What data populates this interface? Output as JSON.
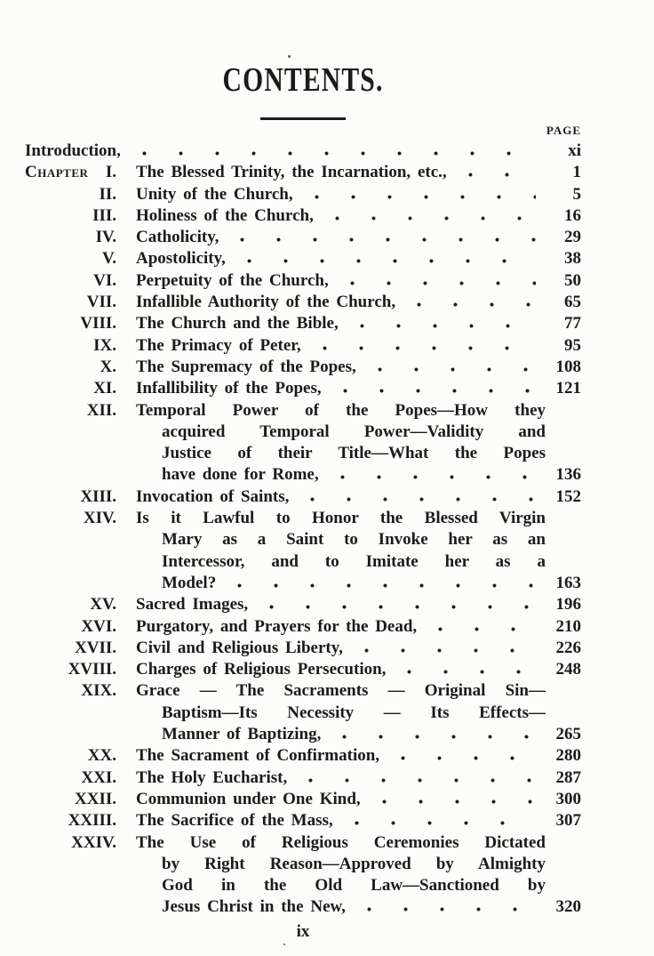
{
  "page": {
    "title": "CONTENTS.",
    "page_column_label": "PAGE",
    "folio": "ix"
  },
  "toc": {
    "entries": [
      {
        "intro": true,
        "prefix": "",
        "numeral": "",
        "lines": [
          "Introduction,"
        ],
        "page": "xi"
      },
      {
        "prefix": "Chapter",
        "numeral": "I.",
        "lines": [
          "The Blessed Trinity, the Incarnation, etc.,"
        ],
        "page": "1"
      },
      {
        "prefix": "",
        "numeral": "II.",
        "lines": [
          "Unity of the Church,"
        ],
        "page": "5"
      },
      {
        "prefix": "",
        "numeral": "III.",
        "lines": [
          "Holiness of the Church,"
        ],
        "page": "16"
      },
      {
        "prefix": "",
        "numeral": "IV.",
        "lines": [
          "Catholicity,"
        ],
        "page": "29"
      },
      {
        "prefix": "",
        "numeral": "V.",
        "lines": [
          "Apostolicity,"
        ],
        "page": "38"
      },
      {
        "prefix": "",
        "numeral": "VI.",
        "lines": [
          "Perpetuity of the Church,"
        ],
        "page": "50"
      },
      {
        "prefix": "",
        "numeral": "VII.",
        "lines": [
          "Infallible Authority of the Church,"
        ],
        "page": "65"
      },
      {
        "prefix": "",
        "numeral": "VIII.",
        "lines": [
          "The Church and the Bible,"
        ],
        "page": "77"
      },
      {
        "prefix": "",
        "numeral": "IX.",
        "lines": [
          "The Primacy of Peter,"
        ],
        "page": "95"
      },
      {
        "prefix": "",
        "numeral": "X.",
        "lines": [
          "The Supremacy of the Popes,"
        ],
        "page": "108"
      },
      {
        "prefix": "",
        "numeral": "XI.",
        "lines": [
          "Infallibility of the Popes,"
        ],
        "page": "121"
      },
      {
        "prefix": "",
        "numeral": "XII.",
        "lines": [
          "Temporal Power of the Popes—How they",
          "acquired Temporal Power—Validity and",
          "Justice of their Title—What the Popes",
          "have done for Rome,"
        ],
        "page": "136"
      },
      {
        "prefix": "",
        "numeral": "XIII.",
        "lines": [
          "Invocation of Saints,"
        ],
        "page": "152"
      },
      {
        "prefix": "",
        "numeral": "XIV.",
        "lines": [
          "Is it Lawful to Honor the Blessed Virgin",
          "Mary as a Saint to Invoke her as an",
          "Intercessor, and to Imitate her as a",
          "Model?"
        ],
        "page": "163"
      },
      {
        "prefix": "",
        "numeral": "XV.",
        "lines": [
          "Sacred Images,"
        ],
        "page": "196"
      },
      {
        "prefix": "",
        "numeral": "XVI.",
        "lines": [
          "Purgatory, and Prayers for the Dead,"
        ],
        "page": "210"
      },
      {
        "prefix": "",
        "numeral": "XVII.",
        "lines": [
          "Civil and Religious Liberty,"
        ],
        "page": "226"
      },
      {
        "prefix": "",
        "numeral": "XVIII.",
        "lines": [
          "Charges of Religious Persecution,"
        ],
        "page": "248"
      },
      {
        "prefix": "",
        "numeral": "XIX.",
        "lines": [
          "Grace — The Sacraments — Original Sin—",
          "Baptism—Its Necessity — Its Effects—",
          "Manner of Baptizing,"
        ],
        "page": "265"
      },
      {
        "prefix": "",
        "numeral": "XX.",
        "lines": [
          "The Sacrament of Confirmation,"
        ],
        "page": "280"
      },
      {
        "prefix": "",
        "numeral": "XXI.",
        "lines": [
          "The Holy Eucharist,"
        ],
        "page": "287"
      },
      {
        "prefix": "",
        "numeral": "XXII.",
        "lines": [
          "Communion under One Kind,"
        ],
        "page": "300"
      },
      {
        "prefix": "",
        "numeral": "XXIII.",
        "lines": [
          "The Sacrifice of the Mass,"
        ],
        "page": "307"
      },
      {
        "prefix": "",
        "numeral": "XXIV.",
        "lines": [
          "The Use of Religious Ceremonies Dictated",
          "by Right Reason—Approved by Almighty",
          "God in the Old Law—Sanctioned by",
          "Jesus Christ in the New,"
        ],
        "page": "320"
      }
    ]
  }
}
